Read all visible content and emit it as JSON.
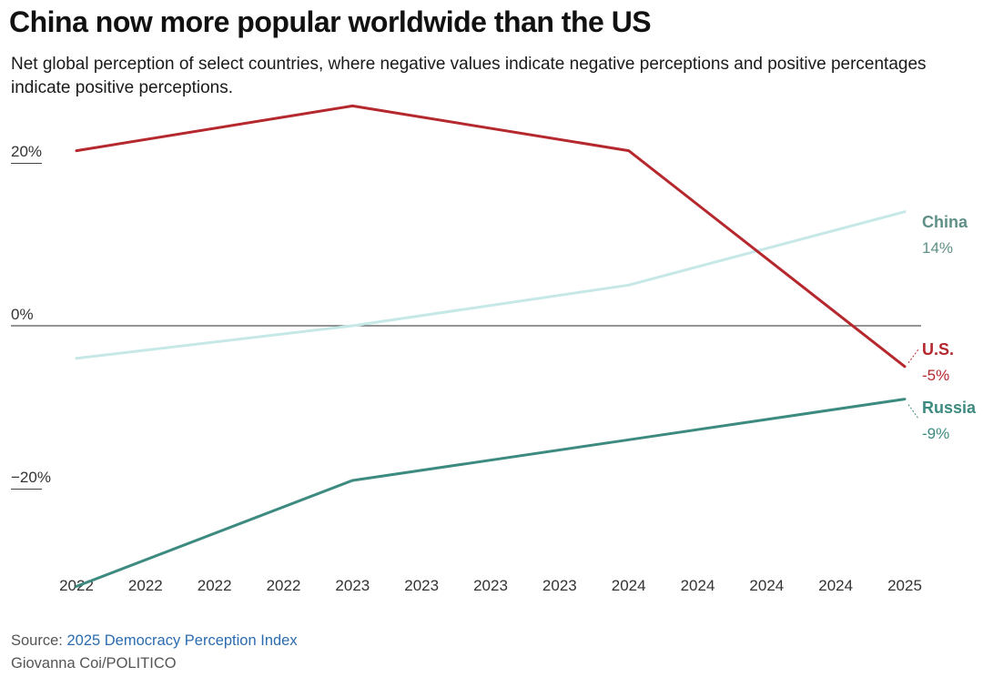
{
  "title": "China now more popular worldwide than the US",
  "subtitle": "Net global perception of select countries, where negative values indicate negative perceptions and positive percentages indicate positive perceptions.",
  "source_label": "Source:",
  "source_link": "2025 Democracy Perception Index",
  "credit": "Giovanna Coi/POLITICO",
  "chart_data": {
    "type": "line",
    "x": [
      "2022",
      "2022",
      "2022",
      "2022",
      "2023",
      "2023",
      "2023",
      "2023",
      "2024",
      "2024",
      "2024",
      "2024",
      "2025"
    ],
    "y_ticks": [
      20,
      0,
      -20
    ],
    "y_tick_labels": [
      "20%",
      "0%",
      "−20%"
    ],
    "ylim": [
      -32,
      28
    ],
    "series": [
      {
        "name": "U.S.",
        "end_label": "-5%",
        "color": "#b5282d",
        "points": [
          {
            "i": 0,
            "v": 21.5
          },
          {
            "i": 4,
            "v": 27
          },
          {
            "i": 8,
            "v": 21.5
          },
          {
            "i": 12,
            "v": -5
          }
        ]
      },
      {
        "name": "China",
        "end_label": "14%",
        "color": "#c6e8e6",
        "label_color": "#5f8f86",
        "points": [
          {
            "i": 0,
            "v": -4
          },
          {
            "i": 4,
            "v": 0
          },
          {
            "i": 8,
            "v": 5
          },
          {
            "i": 12,
            "v": 14
          }
        ]
      },
      {
        "name": "Russia",
        "end_label": "-9%",
        "color": "#3d8b80",
        "points": [
          {
            "i": 0,
            "v": -32
          },
          {
            "i": 4,
            "v": -19
          },
          {
            "i": 8,
            "v": -14
          },
          {
            "i": 12,
            "v": -9
          }
        ]
      }
    ]
  }
}
